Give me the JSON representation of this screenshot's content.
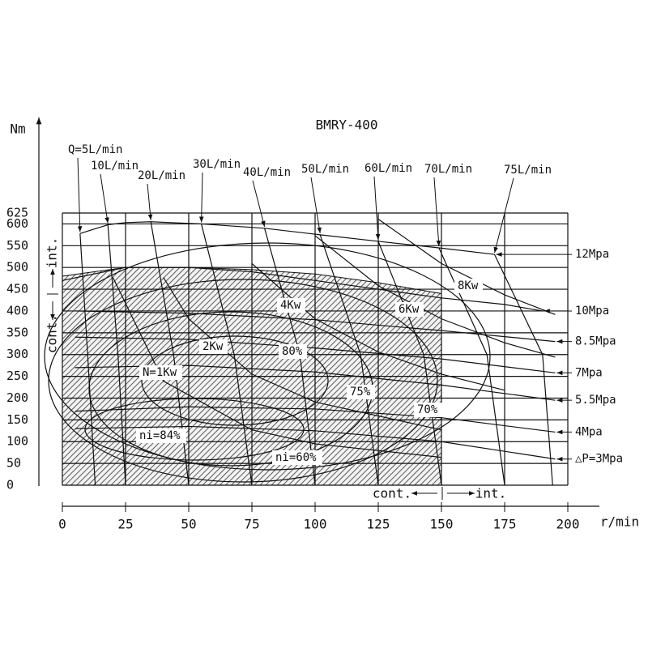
{
  "chart_data": {
    "type": "line",
    "title": "BMRY-400",
    "xlabel": "r/min",
    "ylabel": "Nm",
    "xlim": [
      0,
      200
    ],
    "ylim": [
      0,
      625
    ],
    "xticks": [
      0,
      25,
      50,
      75,
      100,
      125,
      150,
      175,
      200
    ],
    "yticks": [
      0,
      50,
      100,
      150,
      200,
      250,
      300,
      350,
      400,
      450,
      500,
      550,
      600,
      625
    ],
    "grid": true,
    "continuous_region": {
      "x": [
        0,
        0,
        25,
        50,
        75,
        100,
        125,
        150,
        150
      ],
      "values": [
        0,
        480,
        500,
        500,
        495,
        485,
        465,
        440,
        0
      ]
    },
    "pressure_lines": [
      {
        "name": "12Mpa",
        "x": [
          7,
          18,
          25,
          35,
          55,
          80,
          102,
          125,
          149,
          171
        ],
        "values": [
          578,
          598,
          603,
          605,
          600,
          590,
          575,
          560,
          545,
          530
        ]
      },
      {
        "name": "10Mpa",
        "x": [
          0,
          25,
          50,
          75,
          100,
          125,
          150,
          175,
          190
        ],
        "values": [
          470,
          500,
          500,
          490,
          470,
          450,
          430,
          415,
          400
        ]
      },
      {
        "name": "8.5Mpa",
        "x": [
          5,
          50,
          100,
          150,
          195
        ],
        "values": [
          400,
          395,
          380,
          355,
          330
        ]
      },
      {
        "name": "7Mpa",
        "x": [
          5,
          50,
          100,
          150,
          195
        ],
        "values": [
          340,
          335,
          315,
          290,
          258
        ]
      },
      {
        "name": "5.5Mpa",
        "x": [
          5,
          50,
          100,
          150,
          195
        ],
        "values": [
          270,
          275,
          260,
          230,
          195
        ]
      },
      {
        "name": "4Mpa",
        "x": [
          5,
          50,
          100,
          150,
          195
        ],
        "values": [
          170,
          180,
          175,
          155,
          122
        ]
      },
      {
        "name": "△P=3Mpa",
        "x": [
          5,
          50,
          100,
          150,
          195
        ],
        "values": [
          130,
          135,
          125,
          100,
          60
        ]
      }
    ],
    "flow_lines": [
      {
        "name": "Q=5L/min",
        "x": [
          7,
          10,
          13
        ],
        "values": [
          578,
          300,
          0
        ]
      },
      {
        "name": "10L/min",
        "x": [
          18,
          22,
          25
        ],
        "values": [
          598,
          300,
          0
        ]
      },
      {
        "name": "20L/min",
        "x": [
          35,
          44,
          50
        ],
        "values": [
          605,
          300,
          0
        ]
      },
      {
        "name": "30L/min",
        "x": [
          55,
          68,
          75
        ],
        "values": [
          600,
          300,
          0
        ]
      },
      {
        "name": "40L/min",
        "x": [
          80,
          94,
          100
        ],
        "values": [
          590,
          300,
          0
        ]
      },
      {
        "name": "50L/min",
        "x": [
          102,
          118,
          125
        ],
        "values": [
          575,
          300,
          0
        ]
      },
      {
        "name": "60L/min",
        "x": [
          125,
          143,
          150
        ],
        "values": [
          560,
          300,
          0
        ]
      },
      {
        "name": "70L/min",
        "x": [
          149,
          168,
          175
        ],
        "values": [
          545,
          300,
          0
        ]
      },
      {
        "name": "75L/min",
        "x": [
          171,
          190,
          194
        ],
        "values": [
          530,
          300,
          0
        ]
      }
    ],
    "power_curves": [
      {
        "name": "N=1Kw",
        "x": [
          20,
          40,
          75,
          100,
          150
        ],
        "values": [
          477,
          239,
          127,
          95,
          64
        ]
      },
      {
        "name": "2Kw",
        "x": [
          40,
          50,
          75,
          100,
          150
        ],
        "values": [
          477,
          382,
          255,
          191,
          127
        ]
      },
      {
        "name": "4Kw",
        "x": [
          75,
          100,
          125,
          150,
          175
        ],
        "values": [
          509,
          382,
          306,
          255,
          218
        ]
      },
      {
        "name": "6Kw",
        "x": [
          100,
          125,
          150,
          175,
          195
        ],
        "values": [
          573,
          458,
          382,
          327,
          294
        ]
      },
      {
        "name": "8Kw",
        "x": [
          125,
          150,
          175,
          195
        ],
        "values": [
          611,
          509,
          437,
          392
        ]
      }
    ],
    "annotations": [
      "80%",
      "75%",
      "70%",
      "ni=84%",
      "ni=60%"
    ],
    "zone_labels": {
      "y_cont": "cont.",
      "y_int": "int.",
      "x_cont": "cont.",
      "x_int": "int."
    }
  }
}
